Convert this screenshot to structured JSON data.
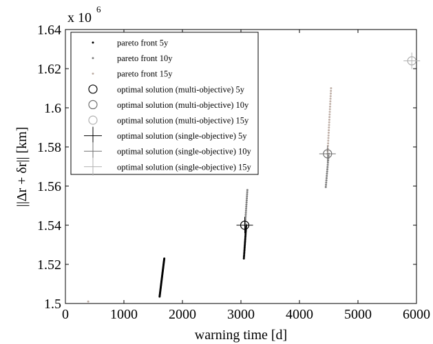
{
  "chart_data": {
    "type": "scatter",
    "xlabel": "warning time [d]",
    "ylabel": "||Δr + δr|| [km]",
    "xlim": [
      0,
      6000
    ],
    "ylim": [
      1.5,
      1.64
    ],
    "x_ticks": [
      0,
      1000,
      2000,
      3000,
      4000,
      5000,
      6000
    ],
    "x_tick_labels": [
      "0",
      "1000",
      "2000",
      "3000",
      "4000",
      "5000",
      "6000"
    ],
    "y_ticks": [
      1.5,
      1.52,
      1.54,
      1.56,
      1.58,
      1.6,
      1.62,
      1.64
    ],
    "y_tick_labels": [
      "1.5",
      "1.52",
      "1.54",
      "1.56",
      "1.58",
      "1.6",
      "1.62",
      "1.64"
    ],
    "y_multiplier": {
      "base": "x 10",
      "exponent": "6"
    },
    "grid": false,
    "legend_position": "top-left",
    "series": [
      {
        "name": "pareto front 5y",
        "marker": "dot",
        "color": "#000000",
        "segments": [
          {
            "x": [
              1610,
              1690
            ],
            "y": [
              1.5035,
              1.523
            ],
            "n": 45
          },
          {
            "x": [
              3050,
              3090
            ],
            "y": [
              1.523,
              1.54
            ],
            "n": 22
          }
        ]
      },
      {
        "name": "pareto front 10y",
        "marker": "dot",
        "color": "#808080",
        "segments": [
          {
            "x": [
              3070,
              3110
            ],
            "y": [
              1.54,
              1.558
            ],
            "n": 18
          },
          {
            "x": [
              4450,
              4500
            ],
            "y": [
              1.5595,
              1.5765
            ],
            "n": 16
          }
        ]
      },
      {
        "name": "pareto front 15y",
        "marker": "dot",
        "color": "#c0b0a8",
        "segments": [
          {
            "x": [
              4480,
              4540
            ],
            "y": [
              1.5765,
              1.61
            ],
            "n": 26
          }
        ],
        "points": [
          {
            "x": 390,
            "y": 1.501
          }
        ]
      },
      {
        "name": "optimal solution (multi-objective) 5y",
        "marker": "circle",
        "color": "#000000",
        "points": [
          {
            "x": 3065,
            "y": 1.54
          }
        ]
      },
      {
        "name": "optimal solution (multi-objective) 10y",
        "marker": "circle",
        "color": "#707070",
        "points": [
          {
            "x": 4480,
            "y": 1.5765
          }
        ]
      },
      {
        "name": "optimal solution (multi-objective) 15y",
        "marker": "circle",
        "color": "#b0b0b0",
        "points": [
          {
            "x": 5920,
            "y": 1.624
          }
        ]
      },
      {
        "name": "optimal solution (single-objective) 5y",
        "marker": "plus",
        "color": "#000000",
        "points": [
          {
            "x": 3065,
            "y": 1.54
          }
        ]
      },
      {
        "name": "optimal solution (single-objective) 10y",
        "marker": "plus",
        "color": "#707070",
        "points": [
          {
            "x": 4480,
            "y": 1.5765
          }
        ]
      },
      {
        "name": "optimal solution (single-objective) 15y",
        "marker": "plus",
        "color": "#b0b0b0",
        "points": [
          {
            "x": 5920,
            "y": 1.624
          }
        ]
      }
    ]
  }
}
